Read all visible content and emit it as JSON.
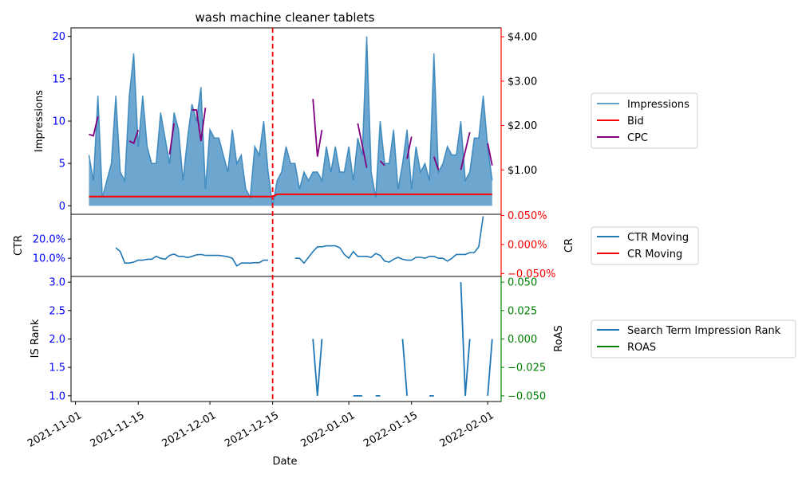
{
  "chart_data": {
    "type": "line",
    "title": "wash machine cleaner tablets",
    "xlabel": "Date",
    "xlim": [
      "2021-10-31",
      "2022-02-04"
    ],
    "x_ticks": [
      "2021-11-01",
      "2021-11-15",
      "2021-12-01",
      "2021-12-15",
      "2022-01-01",
      "2022-01-15",
      "2022-02-01"
    ],
    "vline_date": "2021-12-15",
    "colors": {
      "impressions": "#1f77b4",
      "bid": "#ff0000",
      "cpc": "#800080",
      "roas": "#008000",
      "ctr": "#1f77b4",
      "vline": "#ff0000"
    },
    "panels": {
      "top": {
        "ylabel": "Impressions",
        "ylim": [
          -1,
          21
        ],
        "yticks": [
          "0",
          "5",
          "10",
          "15",
          "20"
        ],
        "right_ylim": [
          0,
          4.2
        ],
        "right_yticks": [
          "$1.00",
          "$2.00",
          "$3.00",
          "$4.00"
        ],
        "legend": [
          "Impressions",
          "Bid",
          "CPC"
        ],
        "impressions": [
          [
            "2021-11-04",
            6
          ],
          [
            "2021-11-05",
            3
          ],
          [
            "2021-11-06",
            13
          ],
          [
            "2021-11-07",
            1
          ],
          [
            "2021-11-09",
            5
          ],
          [
            "2021-11-10",
            13
          ],
          [
            "2021-11-11",
            4
          ],
          [
            "2021-11-12",
            3
          ],
          [
            "2021-11-13",
            13
          ],
          [
            "2021-11-14",
            18
          ],
          [
            "2021-11-15",
            7
          ],
          [
            "2021-11-16",
            13
          ],
          [
            "2021-11-17",
            7
          ],
          [
            "2021-11-18",
            5
          ],
          [
            "2021-11-19",
            5
          ],
          [
            "2021-11-20",
            11
          ],
          [
            "2021-11-22",
            5
          ],
          [
            "2021-11-23",
            11
          ],
          [
            "2021-11-24",
            9
          ],
          [
            "2021-11-25",
            3
          ],
          [
            "2021-11-26",
            8
          ],
          [
            "2021-11-27",
            12
          ],
          [
            "2021-11-28",
            10
          ],
          [
            "2021-11-29",
            14
          ],
          [
            "2021-11-30",
            2
          ],
          [
            "2021-12-01",
            9
          ],
          [
            "2021-12-02",
            8
          ],
          [
            "2021-12-03",
            8
          ],
          [
            "2021-12-05",
            4
          ],
          [
            "2021-12-06",
            9
          ],
          [
            "2021-12-07",
            5
          ],
          [
            "2021-12-08",
            6
          ],
          [
            "2021-12-09",
            2
          ],
          [
            "2021-12-10",
            1
          ],
          [
            "2021-12-11",
            7
          ],
          [
            "2021-12-12",
            6
          ],
          [
            "2021-12-13",
            10
          ],
          [
            "2021-12-14",
            4
          ],
          [
            "2021-12-15",
            0
          ],
          [
            "2021-12-16",
            3
          ],
          [
            "2021-12-17",
            4
          ],
          [
            "2021-12-18",
            7
          ],
          [
            "2021-12-19",
            5
          ],
          [
            "2021-12-20",
            5
          ],
          [
            "2021-12-21",
            2
          ],
          [
            "2021-12-22",
            4
          ],
          [
            "2021-12-23",
            3
          ],
          [
            "2021-12-24",
            4
          ],
          [
            "2021-12-25",
            4
          ],
          [
            "2021-12-26",
            3
          ],
          [
            "2021-12-27",
            7
          ],
          [
            "2021-12-28",
            4
          ],
          [
            "2021-12-29",
            7
          ],
          [
            "2021-12-30",
            4
          ],
          [
            "2021-12-31",
            4
          ],
          [
            "2022-01-01",
            7
          ],
          [
            "2022-01-02",
            3
          ],
          [
            "2022-01-03",
            8
          ],
          [
            "2022-01-04",
            6
          ],
          [
            "2022-01-05",
            20
          ],
          [
            "2022-01-06",
            4
          ],
          [
            "2022-01-07",
            1
          ],
          [
            "2022-01-08",
            10
          ],
          [
            "2022-01-09",
            5
          ],
          [
            "2022-01-10",
            5
          ],
          [
            "2022-01-11",
            9
          ],
          [
            "2022-01-12",
            2
          ],
          [
            "2022-01-13",
            5
          ],
          [
            "2022-01-14",
            9
          ],
          [
            "2022-01-15",
            2
          ],
          [
            "2022-01-16",
            7
          ],
          [
            "2022-01-17",
            4
          ],
          [
            "2022-01-18",
            5
          ],
          [
            "2022-01-19",
            3
          ],
          [
            "2022-01-20",
            18
          ],
          [
            "2022-01-21",
            4
          ],
          [
            "2022-01-22",
            5
          ],
          [
            "2022-01-23",
            7
          ],
          [
            "2022-01-24",
            6
          ],
          [
            "2022-01-25",
            6
          ],
          [
            "2022-01-26",
            10
          ],
          [
            "2022-01-27",
            3
          ],
          [
            "2022-01-28",
            4
          ],
          [
            "2022-01-29",
            8
          ],
          [
            "2022-01-30",
            8
          ],
          [
            "2022-01-31",
            13
          ],
          [
            "2022-02-01",
            7
          ],
          [
            "2022-02-02",
            3
          ]
        ],
        "bid": [
          [
            "2021-11-04",
            0.4
          ],
          [
            "2021-12-15",
            0.4
          ],
          [
            "2021-12-16",
            0.45
          ],
          [
            "2022-02-02",
            0.45
          ]
        ],
        "cpc_segments": [
          [
            [
              "2021-11-04",
              1.8
            ],
            [
              "2021-11-05",
              1.77
            ],
            [
              "2021-11-06",
              2.2
            ]
          ],
          [
            [
              "2021-11-13",
              1.65
            ],
            [
              "2021-11-14",
              1.6
            ],
            [
              "2021-11-15",
              1.9
            ]
          ],
          [
            [
              "2021-11-22",
              1.35
            ],
            [
              "2021-11-23",
              2.05
            ]
          ],
          [
            [
              "2021-11-27",
              2.35
            ],
            [
              "2021-11-28",
              2.35
            ],
            [
              "2021-11-29",
              1.65
            ],
            [
              "2021-11-30",
              2.4
            ]
          ],
          [
            [
              "2021-12-24",
              2.6
            ],
            [
              "2021-12-25",
              1.3
            ],
            [
              "2021-12-26",
              1.9
            ]
          ],
          [
            [
              "2022-01-03",
              2.05
            ],
            [
              "2022-01-05",
              1.05
            ]
          ],
          [
            [
              "2022-01-08",
              1.2
            ],
            [
              "2022-01-09",
              1.1
            ]
          ],
          [
            [
              "2022-01-14",
              1.25
            ],
            [
              "2022-01-15",
              1.75
            ]
          ],
          [
            [
              "2022-01-20",
              1.3
            ],
            [
              "2022-01-21",
              1.0
            ]
          ],
          [
            [
              "2022-01-26",
              1.0
            ],
            [
              "2022-01-28",
              1.85
            ]
          ],
          [
            [
              "2022-02-01",
              1.6
            ],
            [
              "2022-02-02",
              1.1
            ]
          ]
        ]
      },
      "middle": {
        "ylabel": "CTR",
        "ylim": [
          0.005,
          0.33
        ],
        "yticks": [
          "10.0%",
          "20.0%"
        ],
        "right_ylabel": "CR",
        "right_yticks": [
          "−0.050%",
          "0.000%",
          "0.050%"
        ],
        "legend": [
          "CTR Moving",
          "CR Moving"
        ],
        "ctr_segments": [
          [
            [
              "2021-11-10",
              0.155
            ],
            [
              "2021-11-11",
              0.135
            ],
            [
              "2021-11-12",
              0.075
            ],
            [
              "2021-11-13",
              0.075
            ],
            [
              "2021-11-14",
              0.08
            ],
            [
              "2021-11-15",
              0.09
            ],
            [
              "2021-11-16",
              0.09
            ],
            [
              "2021-11-17",
              0.095
            ],
            [
              "2021-11-18",
              0.095
            ],
            [
              "2021-11-19",
              0.11
            ],
            [
              "2021-11-20",
              0.1
            ],
            [
              "2021-11-21",
              0.095
            ],
            [
              "2021-11-22",
              0.115
            ],
            [
              "2021-11-23",
              0.122
            ],
            [
              "2021-11-24",
              0.11
            ],
            [
              "2021-11-25",
              0.11
            ],
            [
              "2021-11-26",
              0.104
            ],
            [
              "2021-11-27",
              0.11
            ],
            [
              "2021-11-28",
              0.118
            ],
            [
              "2021-11-29",
              0.12
            ],
            [
              "2021-11-30",
              0.115
            ],
            [
              "2021-12-01",
              0.115
            ],
            [
              "2021-12-02",
              0.115
            ],
            [
              "2021-12-03",
              0.115
            ],
            [
              "2021-12-04",
              0.112
            ],
            [
              "2021-12-05",
              0.108
            ],
            [
              "2021-12-06",
              0.1
            ],
            [
              "2021-12-07",
              0.06
            ],
            [
              "2021-12-08",
              0.075
            ],
            [
              "2021-12-09",
              0.075
            ],
            [
              "2021-12-10",
              0.075
            ],
            [
              "2021-12-11",
              0.077
            ],
            [
              "2021-12-12",
              0.077
            ],
            [
              "2021-12-13",
              0.09
            ],
            [
              "2021-12-14",
              0.09
            ]
          ],
          [
            [
              "2021-12-20",
              0.1
            ],
            [
              "2021-12-21",
              0.1
            ],
            [
              "2021-12-22",
              0.075
            ],
            [
              "2021-12-23",
              0.105
            ],
            [
              "2021-12-24",
              0.135
            ],
            [
              "2021-12-25",
              0.16
            ],
            [
              "2021-12-26",
              0.16
            ],
            [
              "2021-12-27",
              0.165
            ],
            [
              "2021-12-28",
              0.165
            ],
            [
              "2021-12-29",
              0.165
            ],
            [
              "2021-12-30",
              0.155
            ],
            [
              "2021-12-31",
              0.12
            ],
            [
              "2022-01-01",
              0.1
            ],
            [
              "2022-01-02",
              0.135
            ],
            [
              "2022-01-03",
              0.11
            ],
            [
              "2022-01-04",
              0.11
            ],
            [
              "2022-01-05",
              0.11
            ],
            [
              "2022-01-06",
              0.105
            ],
            [
              "2022-01-07",
              0.125
            ],
            [
              "2022-01-08",
              0.115
            ],
            [
              "2022-01-09",
              0.085
            ],
            [
              "2022-01-10",
              0.08
            ],
            [
              "2022-01-11",
              0.095
            ],
            [
              "2022-01-12",
              0.105
            ],
            [
              "2022-01-13",
              0.095
            ],
            [
              "2022-01-14",
              0.09
            ],
            [
              "2022-01-15",
              0.09
            ],
            [
              "2022-01-16",
              0.105
            ],
            [
              "2022-01-17",
              0.105
            ],
            [
              "2022-01-18",
              0.1
            ],
            [
              "2022-01-19",
              0.11
            ],
            [
              "2022-01-20",
              0.11
            ],
            [
              "2022-01-21",
              0.1
            ],
            [
              "2022-01-22",
              0.1
            ],
            [
              "2022-01-23",
              0.085
            ],
            [
              "2022-01-24",
              0.1
            ],
            [
              "2022-01-25",
              0.12
            ],
            [
              "2022-01-26",
              0.12
            ],
            [
              "2022-01-27",
              0.12
            ],
            [
              "2022-01-28",
              0.13
            ],
            [
              "2022-01-29",
              0.13
            ],
            [
              "2022-01-30",
              0.16
            ],
            [
              "2022-01-31",
              0.32
            ]
          ]
        ]
      },
      "bottom": {
        "ylabel": "IS Rank",
        "ylim": [
          0.9,
          3.1
        ],
        "yticks": [
          "1.0",
          "1.5",
          "2.0",
          "2.5",
          "3.0"
        ],
        "right_ylabel": "RoAS",
        "right_yticks": [
          "−0.050",
          "−0.025",
          "0.000",
          "0.025",
          "0.050"
        ],
        "legend": [
          "Search Term Impression Rank",
          "ROAS"
        ],
        "rank_segments": [
          [
            [
              "2021-12-24",
              2
            ],
            [
              "2021-12-25",
              1
            ],
            [
              "2021-12-26",
              2
            ]
          ],
          [
            [
              "2022-01-02",
              1
            ],
            [
              "2022-01-04",
              1
            ]
          ],
          [
            [
              "2022-01-07",
              1
            ],
            [
              "2022-01-08",
              1
            ]
          ],
          [
            [
              "2022-01-13",
              2
            ],
            [
              "2022-01-14",
              1
            ]
          ],
          [
            [
              "2022-01-19",
              1
            ],
            [
              "2022-01-20",
              1
            ]
          ],
          [
            [
              "2022-01-26",
              3
            ],
            [
              "2022-01-27",
              1
            ],
            [
              "2022-01-28",
              2
            ]
          ],
          [
            [
              "2022-02-01",
              1
            ],
            [
              "2022-02-02",
              2
            ]
          ]
        ]
      }
    }
  }
}
